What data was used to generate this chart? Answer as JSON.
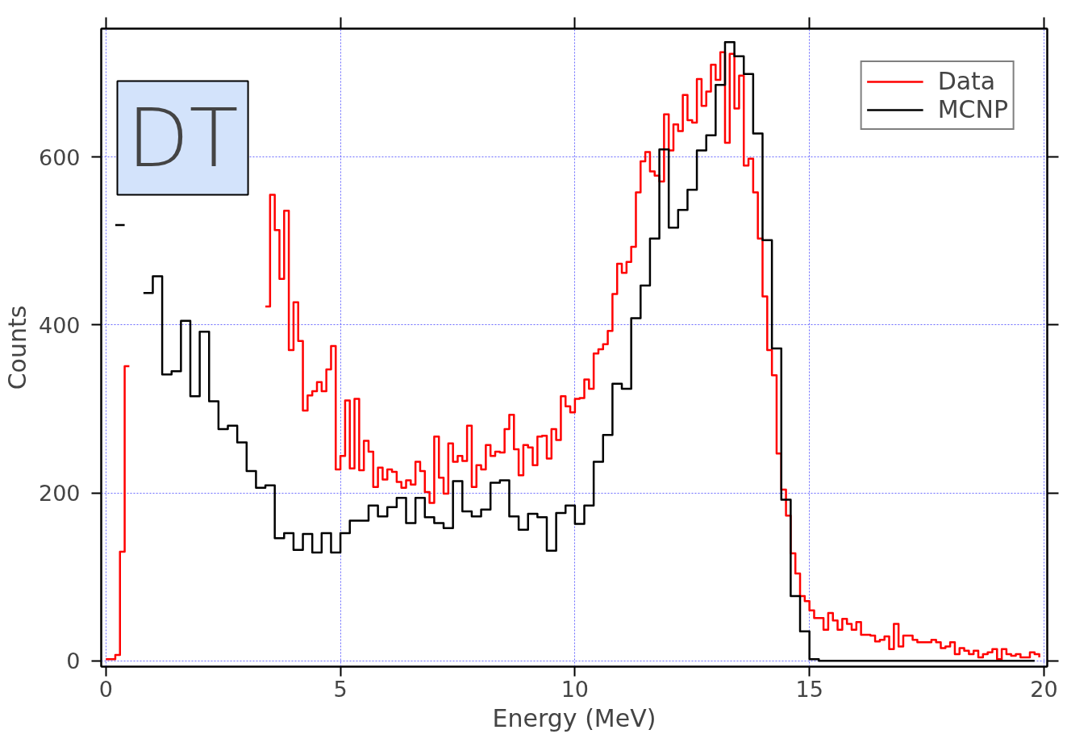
{
  "chart_data": {
    "type": "step",
    "xlabel": "Energy (MeV)",
    "ylabel": "Counts",
    "xlim": [
      -0.1,
      20.07
    ],
    "ylim": [
      -7,
      753
    ],
    "xticks": [
      0,
      5,
      10,
      15,
      20
    ],
    "yticks": [
      0,
      200,
      400,
      600
    ],
    "grid": true,
    "legend": "top right",
    "annotations": [
      "DT"
    ],
    "series": [
      {
        "name": "Data",
        "color": "#ff0000",
        "x": [
          0.0,
          0.1,
          0.2,
          0.3,
          0.4,
          0.5,
          3.4,
          3.5,
          3.6,
          3.7,
          3.8,
          3.9,
          4.0,
          4.1,
          4.2,
          4.3,
          4.4,
          4.5,
          4.6,
          4.7,
          4.8,
          4.9,
          5.0,
          5.1,
          5.2,
          5.3,
          5.4,
          5.5,
          5.6,
          5.7,
          5.8,
          5.9,
          6.0,
          6.1,
          6.2,
          6.3,
          6.4,
          6.5,
          6.6,
          6.7,
          6.8,
          6.9,
          7.0,
          7.1,
          7.2,
          7.3,
          7.4,
          7.5,
          7.6,
          7.7,
          7.8,
          7.9,
          8.0,
          8.1,
          8.2,
          8.3,
          8.4,
          8.5,
          8.6,
          8.7,
          8.8,
          8.9,
          9.0,
          9.1,
          9.2,
          9.3,
          9.4,
          9.5,
          9.6,
          9.7,
          9.8,
          9.9,
          10.0,
          10.1,
          10.2,
          10.3,
          10.4,
          10.5,
          10.6,
          10.7,
          10.8,
          10.9,
          11.0,
          11.1,
          11.2,
          11.3,
          11.4,
          11.5,
          11.6,
          11.7,
          11.8,
          11.9,
          12.0,
          12.1,
          12.2,
          12.3,
          12.4,
          12.5,
          12.6,
          12.7,
          12.8,
          12.9,
          13.0,
          13.1,
          13.2,
          13.3,
          13.4,
          13.5,
          13.6,
          13.7,
          13.8,
          13.9,
          14.0,
          14.1,
          14.2,
          14.3,
          14.4,
          14.5,
          14.6,
          14.7,
          14.8,
          14.9,
          15.0,
          15.1,
          15.2,
          15.3,
          15.4,
          15.5,
          15.6,
          15.7,
          15.8,
          15.9,
          16.0,
          16.1,
          16.2,
          16.3,
          16.4,
          16.5,
          16.6,
          16.7,
          16.8,
          16.9,
          17.0,
          17.1,
          17.2,
          17.3,
          17.4,
          17.5,
          17.6,
          17.7,
          17.8,
          17.9,
          18.0,
          18.1,
          18.2,
          18.3,
          18.4,
          18.5,
          18.6,
          18.7,
          18.8,
          18.9,
          19.0,
          19.1,
          19.2,
          19.3,
          19.4,
          19.5,
          19.6,
          19.7,
          19.8,
          19.9
        ],
        "values": [
          2,
          2,
          7,
          130,
          351,
          null,
          422,
          555,
          513,
          455,
          536,
          370,
          427,
          381,
          298,
          316,
          321,
          332,
          321,
          347,
          375,
          228,
          244,
          310,
          229,
          312,
          227,
          262,
          249,
          207,
          230,
          216,
          228,
          225,
          213,
          206,
          215,
          210,
          237,
          226,
          201,
          188,
          267,
          218,
          199,
          259,
          237,
          244,
          238,
          280,
          207,
          233,
          228,
          257,
          244,
          249,
          248,
          276,
          293,
          252,
          221,
          257,
          254,
          233,
          267,
          268,
          241,
          276,
          263,
          315,
          303,
          296,
          312,
          313,
          335,
          324,
          366,
          371,
          377,
          393,
          437,
          473,
          462,
          475,
          493,
          558,
          595,
          606,
          583,
          578,
          571,
          651,
          608,
          639,
          631,
          674,
          644,
          641,
          693,
          661,
          678,
          710,
          692,
          725,
          617,
          723,
          658,
          697,
          590,
          598,
          558,
          503,
          434,
          370,
          340,
          247,
          204,
          173,
          128,
          104,
          77,
          71,
          60,
          51,
          51,
          37,
          57,
          48,
          37,
          50,
          44,
          37,
          46,
          31,
          31,
          30,
          23,
          25,
          29,
          14,
          44,
          17,
          30,
          30,
          25,
          22,
          22,
          22,
          25,
          22,
          15,
          17,
          22,
          8,
          15,
          12,
          8,
          12,
          4,
          8,
          10,
          14,
          2,
          14,
          8,
          6,
          8,
          4,
          4,
          10,
          8,
          4
        ]
      },
      {
        "name": "MCNP",
        "color": "#000000",
        "x": [
          0.2,
          0.4,
          0.6,
          0.8,
          1.0,
          1.2,
          1.4,
          1.6,
          1.8,
          2.0,
          2.2,
          2.4,
          2.6,
          2.8,
          3.0,
          3.2,
          3.4,
          3.6,
          3.8,
          4.0,
          4.2,
          4.4,
          4.6,
          4.8,
          5.0,
          5.2,
          5.4,
          5.6,
          5.8,
          6.0,
          6.2,
          6.4,
          6.6,
          6.8,
          7.0,
          7.2,
          7.4,
          7.6,
          7.8,
          8.0,
          8.2,
          8.4,
          8.6,
          8.8,
          9.0,
          9.2,
          9.4,
          9.6,
          9.8,
          10.0,
          10.2,
          10.4,
          10.6,
          10.8,
          11.0,
          11.2,
          11.4,
          11.6,
          11.8,
          12.0,
          12.2,
          12.4,
          12.6,
          12.8,
          13.0,
          13.2,
          13.4,
          13.6,
          13.8,
          14.0,
          14.2,
          14.4,
          14.6,
          14.8,
          15.0,
          15.2,
          15.4,
          15.6,
          15.8,
          16.0,
          16.2,
          16.4,
          16.6,
          16.8,
          17.0,
          17.2,
          17.4,
          17.6,
          17.8,
          18.0,
          18.2,
          18.4,
          18.6,
          18.8,
          19.0,
          19.2,
          19.4,
          19.6,
          19.8
        ],
        "values": [
          519,
          null,
          null,
          438,
          458,
          341,
          345,
          405,
          315,
          392,
          309,
          276,
          280,
          260,
          226,
          206,
          209,
          146,
          152,
          132,
          151,
          129,
          152,
          129,
          152,
          167,
          167,
          185,
          172,
          183,
          194,
          164,
          194,
          171,
          164,
          158,
          214,
          178,
          172,
          180,
          212,
          215,
          172,
          156,
          175,
          171,
          131,
          176,
          185,
          163,
          185,
          237,
          269,
          330,
          324,
          408,
          447,
          503,
          609,
          516,
          537,
          561,
          608,
          626,
          686,
          737,
          720,
          699,
          628,
          501,
          372,
          192,
          77,
          35,
          2,
          0,
          0,
          0,
          0,
          0,
          0,
          0,
          0,
          0,
          0,
          0,
          0,
          0,
          0,
          0,
          0,
          0,
          0,
          0,
          0,
          0,
          0,
          0,
          0
        ]
      }
    ]
  }
}
